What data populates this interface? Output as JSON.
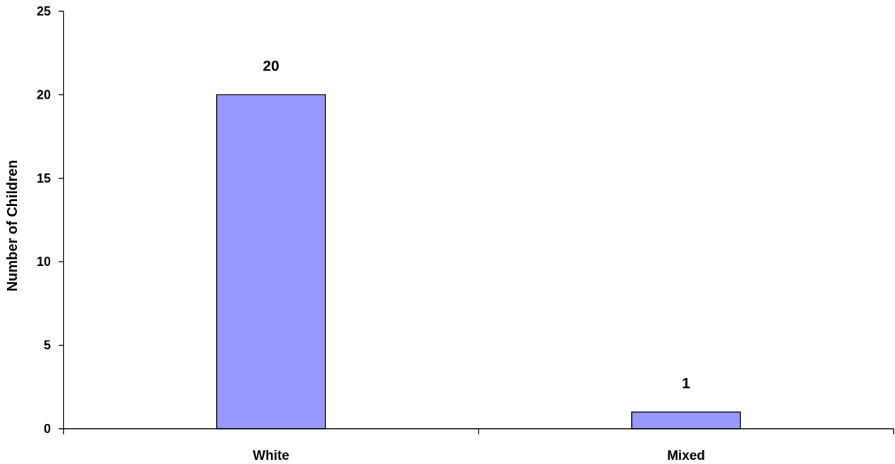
{
  "chart_data": {
    "type": "bar",
    "title": "",
    "xlabel": "",
    "ylabel": "Number of Children",
    "categories": [
      "White",
      "Mixed"
    ],
    "values": [
      20,
      1
    ],
    "data_labels": [
      "20",
      "1"
    ],
    "ylim": [
      0,
      25
    ],
    "yticks": [
      0,
      5,
      10,
      15,
      20,
      25
    ],
    "grid": false,
    "legend": "none",
    "bar_color": "#9999FF",
    "bar_outline_color": "#000000"
  }
}
